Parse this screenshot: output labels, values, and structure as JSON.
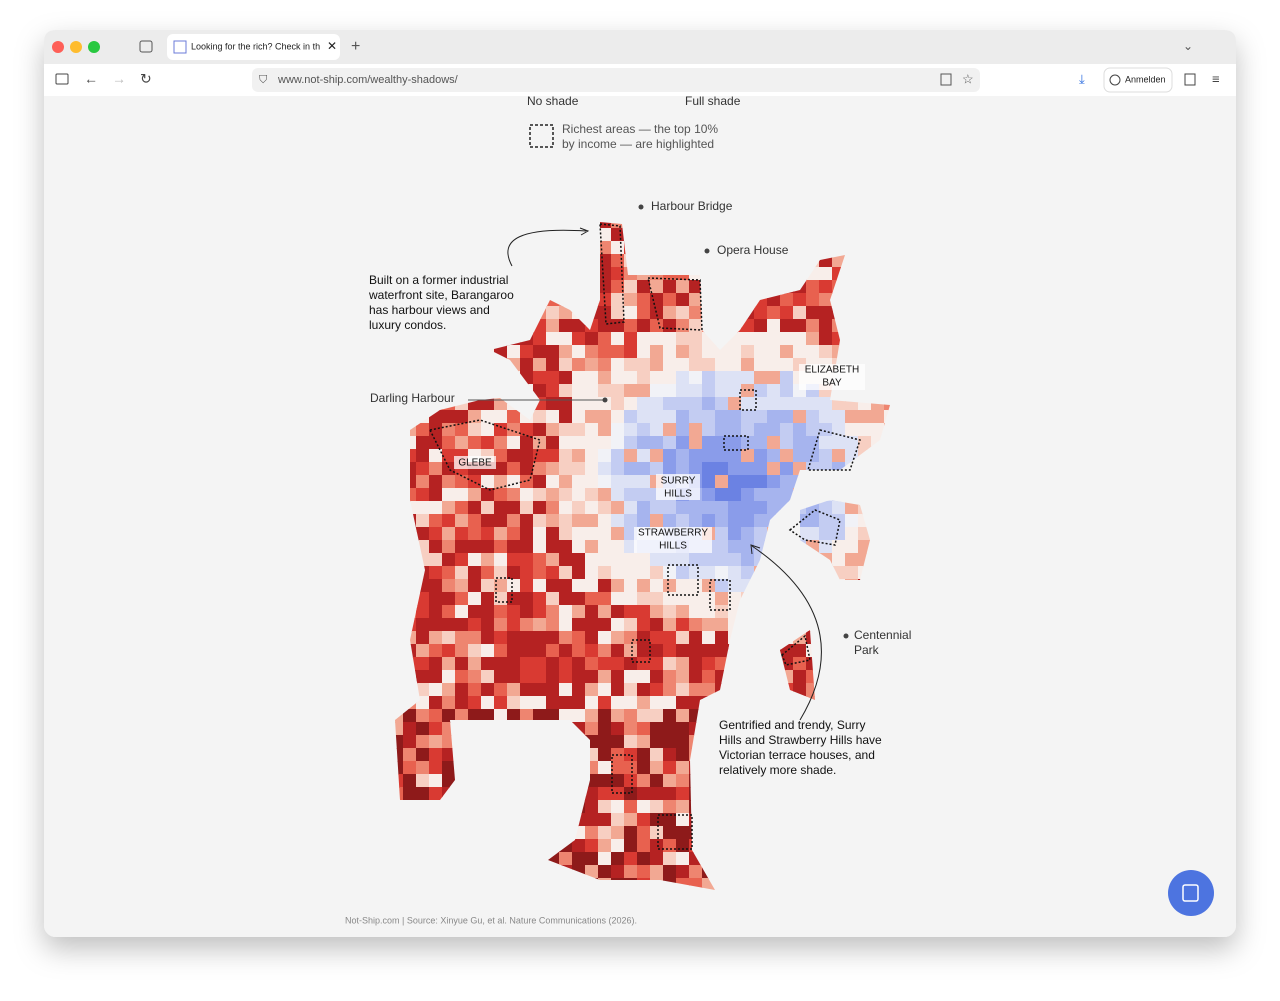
{
  "browser": {
    "tab_title": "Looking for the rich? Check in th",
    "url": "www.not-ship.com/wealthy-shadows/",
    "signin": "Anmelden"
  },
  "legend": {
    "no_shade": "No shade",
    "full_shade": "Full shade",
    "richest": [
      "Richest areas — the top 10%",
      "by income — are highlighted"
    ]
  },
  "map": {
    "landmarks": [
      "Harbour Bridge",
      "Opera House",
      "Darling Harbour",
      [
        "Centennial",
        "Park"
      ]
    ],
    "suburbs": [
      [
        "ELIZABETH",
        "BAY"
      ],
      "GLEBE",
      [
        "SURRY",
        "HILLS"
      ],
      [
        "STRAWBERRY",
        "HILLS"
      ]
    ],
    "annotations": [
      [
        "Built on a former industrial",
        "waterfront site, Barangaroo",
        "has harbour views and",
        "luxury condos."
      ],
      [
        "Gentrified and trendy, Surry",
        "Hills and Strawberry Hills have",
        "Victorian terrace houses, and",
        "relatively more shade."
      ]
    ]
  },
  "footer": {
    "source": "Not-Ship.com | Source: Xinyue Gu, et al. Nature Communications (2026)."
  }
}
